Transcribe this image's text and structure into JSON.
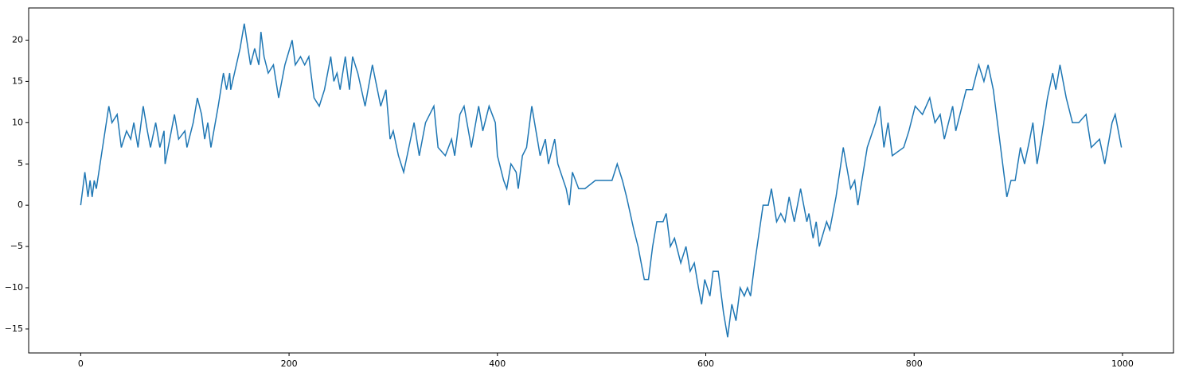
{
  "chart_data": {
    "type": "line",
    "x": [
      0,
      4,
      7,
      9,
      11,
      13,
      15,
      27,
      30,
      35,
      39,
      44,
      48,
      51,
      55,
      60,
      64,
      67,
      72,
      76,
      80,
      81,
      90,
      94,
      100,
      102,
      108,
      112,
      116,
      119,
      122,
      125,
      132,
      137,
      140,
      143,
      144,
      153,
      157,
      163,
      167,
      171,
      173,
      176,
      180,
      185,
      190,
      196,
      203,
      206,
      211,
      215,
      219,
      224,
      229,
      234,
      240,
      243,
      246,
      249,
      254,
      258,
      261,
      266,
      273,
      280,
      288,
      293,
      297,
      300,
      305,
      310,
      315,
      320,
      325,
      331,
      339,
      343,
      350,
      356,
      359,
      364,
      368,
      375,
      382,
      386,
      392,
      398,
      400,
      406,
      409,
      413,
      418,
      420,
      424,
      428,
      433,
      441,
      446,
      449,
      455,
      458,
      466,
      469,
      472,
      478,
      484,
      494,
      500,
      510,
      515,
      520,
      524,
      531,
      535,
      538,
      541,
      545,
      549,
      553,
      559,
      562,
      566,
      570,
      576,
      581,
      585,
      589,
      593,
      596,
      599,
      604,
      607,
      612,
      617,
      621,
      625,
      629,
      633,
      637,
      640,
      643,
      647,
      655,
      660,
      663,
      668,
      672,
      676,
      680,
      685,
      691,
      697,
      699,
      703,
      706,
      709,
      716,
      719,
      725,
      732,
      739,
      743,
      746,
      755,
      763,
      767,
      771,
      775,
      779,
      790,
      795,
      801,
      808,
      815,
      820,
      825,
      829,
      837,
      840,
      850,
      856,
      862,
      867,
      871,
      876,
      889,
      893,
      897,
      902,
      906,
      911,
      914,
      918,
      922,
      928,
      933,
      936,
      940,
      946,
      952,
      958,
      965,
      970,
      978,
      983,
      990,
      993,
      996,
      999
    ],
    "series": [
      {
        "color": "#1f77b4",
        "values": [
          0,
          4,
          1,
          3,
          1,
          3,
          2,
          12,
          10,
          11,
          7,
          9,
          8,
          10,
          7,
          12,
          9,
          7,
          10,
          7,
          9,
          5,
          11,
          8,
          9,
          7,
          10,
          13,
          11,
          8,
          10,
          7,
          12,
          16,
          14,
          16,
          14,
          19,
          22,
          17,
          19,
          17,
          21,
          18,
          16,
          17,
          13,
          17,
          20,
          17,
          18,
          17,
          18,
          13,
          12,
          14,
          18,
          15,
          16,
          14,
          18,
          14,
          18,
          16,
          12,
          17,
          12,
          14,
          8,
          9,
          6,
          4,
          7,
          10,
          6,
          10,
          12,
          7,
          6,
          8,
          6,
          11,
          12,
          7,
          12,
          9,
          12,
          10,
          6,
          3,
          2,
          5,
          4,
          2,
          6,
          7,
          12,
          6,
          8,
          5,
          8,
          5,
          2,
          0,
          4,
          2,
          2,
          3,
          3,
          3,
          5,
          3,
          1,
          -3,
          -5,
          -7,
          -9,
          -9,
          -5,
          -2,
          -2,
          -1,
          -5,
          -4,
          -7,
          -5,
          -8,
          -7,
          -10,
          -12,
          -9,
          -11,
          -8,
          -8,
          -13,
          -16,
          -12,
          -14,
          -10,
          -11,
          -10,
          -11,
          -7,
          0,
          0,
          2,
          -2,
          -1,
          -2,
          1,
          -2,
          2,
          -2,
          -1,
          -4,
          -2,
          -5,
          -2,
          -3,
          1,
          7,
          2,
          3,
          0,
          7,
          10,
          12,
          7,
          10,
          6,
          7,
          9,
          12,
          11,
          13,
          10,
          11,
          8,
          12,
          9,
          14,
          14,
          17,
          15,
          17,
          14,
          1,
          3,
          3,
          7,
          5,
          8,
          10,
          5,
          8,
          13,
          16,
          14,
          17,
          13,
          10,
          10,
          11,
          7,
          8,
          5,
          10,
          11,
          9,
          7
        ]
      }
    ],
    "xlim": [
      -49.95,
      1048.95
    ],
    "ylim": [
      -17.9,
      23.9
    ],
    "xticks": [
      0,
      200,
      400,
      600,
      800,
      1000
    ],
    "yticks": [
      {
        "value": -15,
        "label": "−15"
      },
      {
        "value": -10,
        "label": "−10"
      },
      {
        "value": -5,
        "label": "−5"
      },
      0,
      5,
      10,
      15,
      20
    ]
  }
}
